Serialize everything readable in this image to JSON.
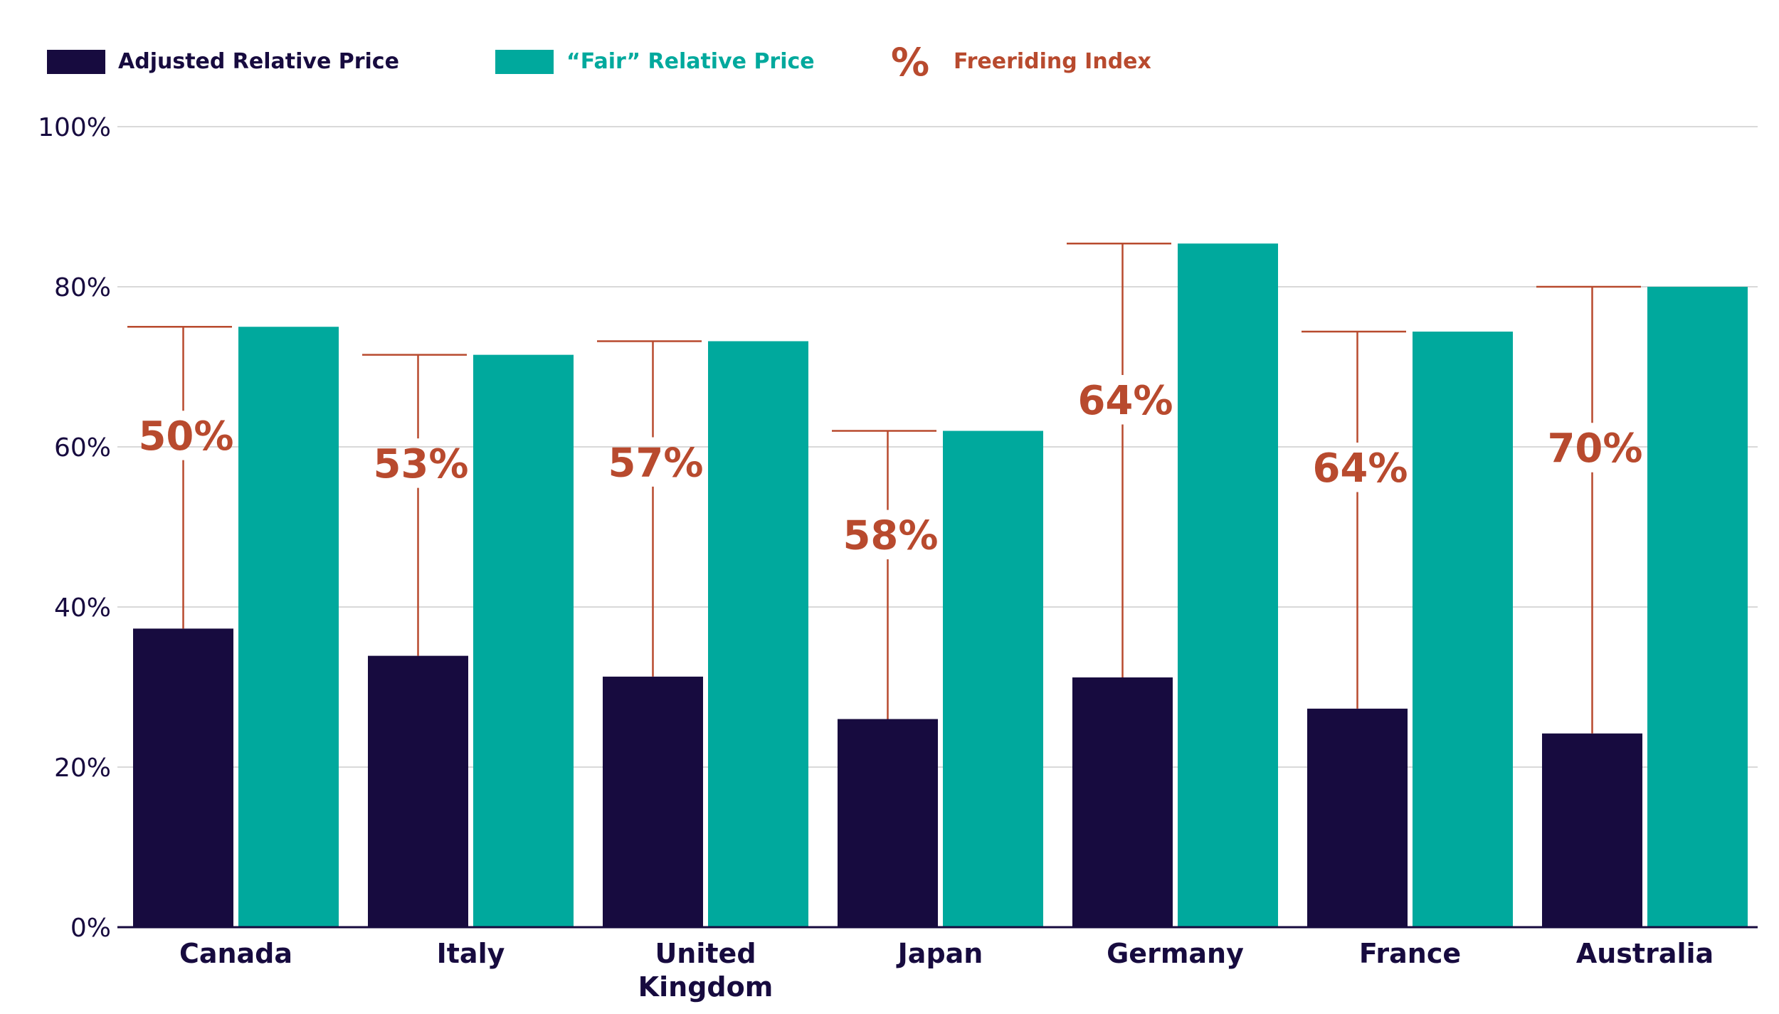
{
  "chart_data": {
    "type": "bar",
    "title": "",
    "xlabel": "",
    "ylabel": "",
    "ylim": [
      0,
      100
    ],
    "yticks": [
      "0%",
      "20%",
      "40%",
      "60%",
      "80%",
      "100%"
    ],
    "ytick_values": [
      0,
      20,
      40,
      60,
      80,
      100
    ],
    "grid": true,
    "legend_position": "top-left",
    "categories": [
      "Canada",
      "Italy",
      "United Kingdom",
      "Japan",
      "Germany",
      "France",
      "Australia"
    ],
    "category_labels": [
      [
        "Canada"
      ],
      [
        "Italy"
      ],
      [
        "United",
        "Kingdom"
      ],
      [
        "Japan"
      ],
      [
        "Germany"
      ],
      [
        "France"
      ],
      [
        "Australia"
      ]
    ],
    "series": [
      {
        "name": "Adjusted Relative Price",
        "color": "#170b3f",
        "values": [
          37.3,
          33.9,
          31.3,
          26.0,
          31.2,
          27.3,
          24.2
        ]
      },
      {
        "name": "“Fair” Relative Price",
        "color": "#00a99d",
        "values": [
          75.0,
          71.5,
          73.2,
          62.0,
          85.4,
          74.4,
          80.0
        ]
      }
    ],
    "freeriding_index": {
      "name": "Freeriding Index",
      "legend_symbol": "%",
      "color": "#b84a2e",
      "labels": [
        "50%",
        "53%",
        "57%",
        "58%",
        "64%",
        "64%",
        "70%"
      ]
    }
  }
}
